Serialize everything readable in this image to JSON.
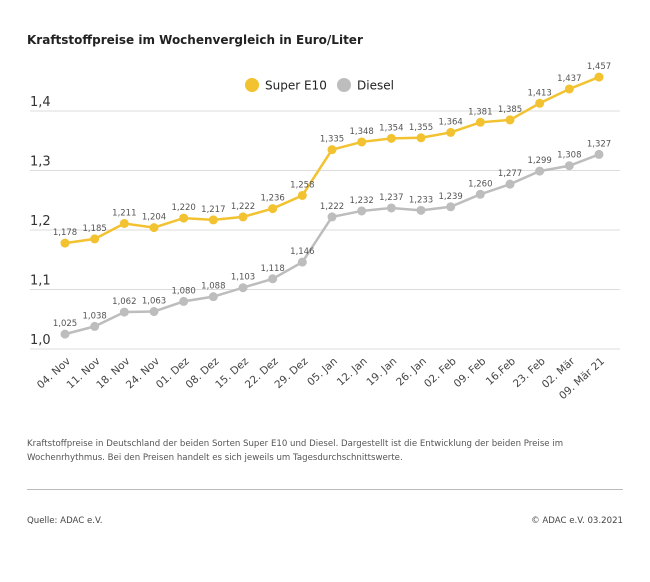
{
  "title": "Kraftstoffpreise im Wochenvergleich in Euro/Liter",
  "chart_data": {
    "type": "line",
    "title": "Kraftstoffpreise im Wochenvergleich in Euro/Liter",
    "categories": [
      "04. Nov",
      "11. Nov",
      "18. Nov",
      "24. Nov",
      "01. Dez",
      "08. Dez",
      "15. Dez",
      "22. Dez",
      "29. Dez",
      "05. Jan",
      "12. Jan",
      "19. Jan",
      "26. Jan",
      "02. Feb",
      "09. Feb",
      "16.Feb",
      "23. Feb",
      "02. Mär",
      "09. Mär 21"
    ],
    "series": [
      {
        "name": "Super E10",
        "color": "#f2c230",
        "values": [
          1.178,
          1.185,
          1.211,
          1.204,
          1.22,
          1.217,
          1.222,
          1.236,
          1.258,
          1.335,
          1.348,
          1.354,
          1.355,
          1.364,
          1.381,
          1.385,
          1.413,
          1.437,
          1.457
        ]
      },
      {
        "name": "Diesel",
        "color": "#bdbdbd",
        "values": [
          1.025,
          1.038,
          1.062,
          1.063,
          1.08,
          1.088,
          1.103,
          1.118,
          1.146,
          1.222,
          1.232,
          1.237,
          1.233,
          1.239,
          1.26,
          1.277,
          1.299,
          1.308,
          1.327
        ]
      }
    ],
    "yticks": [
      "1,0",
      "1,1",
      "1,2",
      "1,3",
      "1,4"
    ],
    "ylim": [
      1.0,
      1.4
    ],
    "grid": true,
    "legend": "top-center",
    "decimal_separator": ","
  },
  "description": "Kraftstoffpreise in Deutschland der beiden Sorten Super E10 und Diesel. Dargestellt ist die Entwicklung der beiden Preise im Wochenrhythmus. Bei den Preisen handelt es sich jeweils um Tagesdurchschnittswerte.",
  "source": "Quelle: ADAC e.V.",
  "copyright": "© ADAC e.V. 03.2021"
}
